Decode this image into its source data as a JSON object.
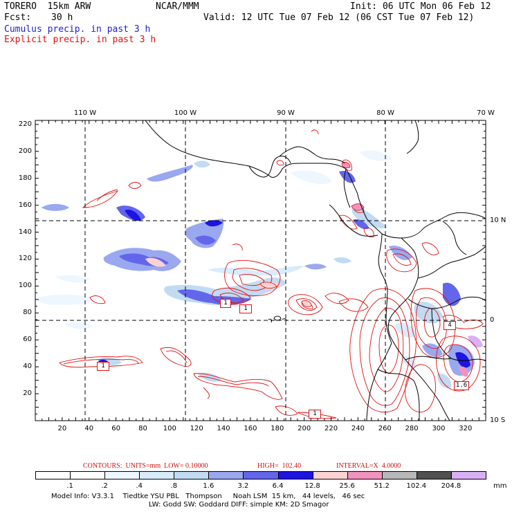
{
  "header": {
    "model": "TORERO  15km ARW",
    "org": "NCAR/MMM",
    "init": "Init: 06 UTC Mon 06 Feb 12",
    "fcst_label": "Fcst:",
    "fcst_value": "30 h",
    "valid": "Valid: 12 UTC Tue 07 Feb 12 (06 CST Tue 07 Feb 12)"
  },
  "fields": {
    "cumulus": "Cumulus precip. in past 3 h",
    "explicit": "Explicit precip. in past 3 h"
  },
  "colors": {
    "cumulus_text": "#2020c8",
    "explicit_text": "#e01010",
    "contour": "#e01010",
    "coast": "#000000"
  },
  "axes": {
    "lon_labels": [
      "110 W",
      "100 W",
      "90 W",
      "80 W",
      "70 W"
    ],
    "lat_labels": [
      "10 N",
      "0",
      "10 S"
    ],
    "x_ticks": [
      "20",
      "40",
      "60",
      "80",
      "100",
      "120",
      "140",
      "160",
      "180",
      "200",
      "220",
      "240",
      "260",
      "280",
      "300",
      "320"
    ],
    "y_ticks": [
      "220",
      "200",
      "180",
      "160",
      "140",
      "120",
      "100",
      "80",
      "60",
      "40",
      "20"
    ]
  },
  "contour_info": {
    "units": "CONTOURS:  UNITS=mm  LOW= 0.10000",
    "high": "HIGH=  102.40",
    "interval": "INTERVAL=X  4.0000"
  },
  "legend": {
    "unit": "mm",
    "labels": [
      ".1",
      ".2",
      ".4",
      ".8",
      "1.6",
      "3.2",
      "6.4",
      "12.8",
      "25.6",
      "51.2",
      "102.4",
      "204.8"
    ],
    "colors": [
      "#ffffff",
      "#ffffff",
      "#eef6ff",
      "#d8ecfb",
      "#c2dbf3",
      "#9aa8f0",
      "#6366ea",
      "#1e14e2",
      "#fcd2d2",
      "#f292be",
      "#b8b8b8",
      "#505050",
      "#dab0f4"
    ]
  },
  "footer": {
    "line1": "Model Info: V3.3.1    Tiedtke YSU PBL   Thompson     Noah LSM  15 km,   44 levels,   46 sec",
    "line2": "LW: Godd SW: Goddard DIFF: simple KM: 2D Smagor"
  },
  "map_labels": [
    "1",
    "1",
    "1",
    "1",
    "4",
    "1.6"
  ]
}
